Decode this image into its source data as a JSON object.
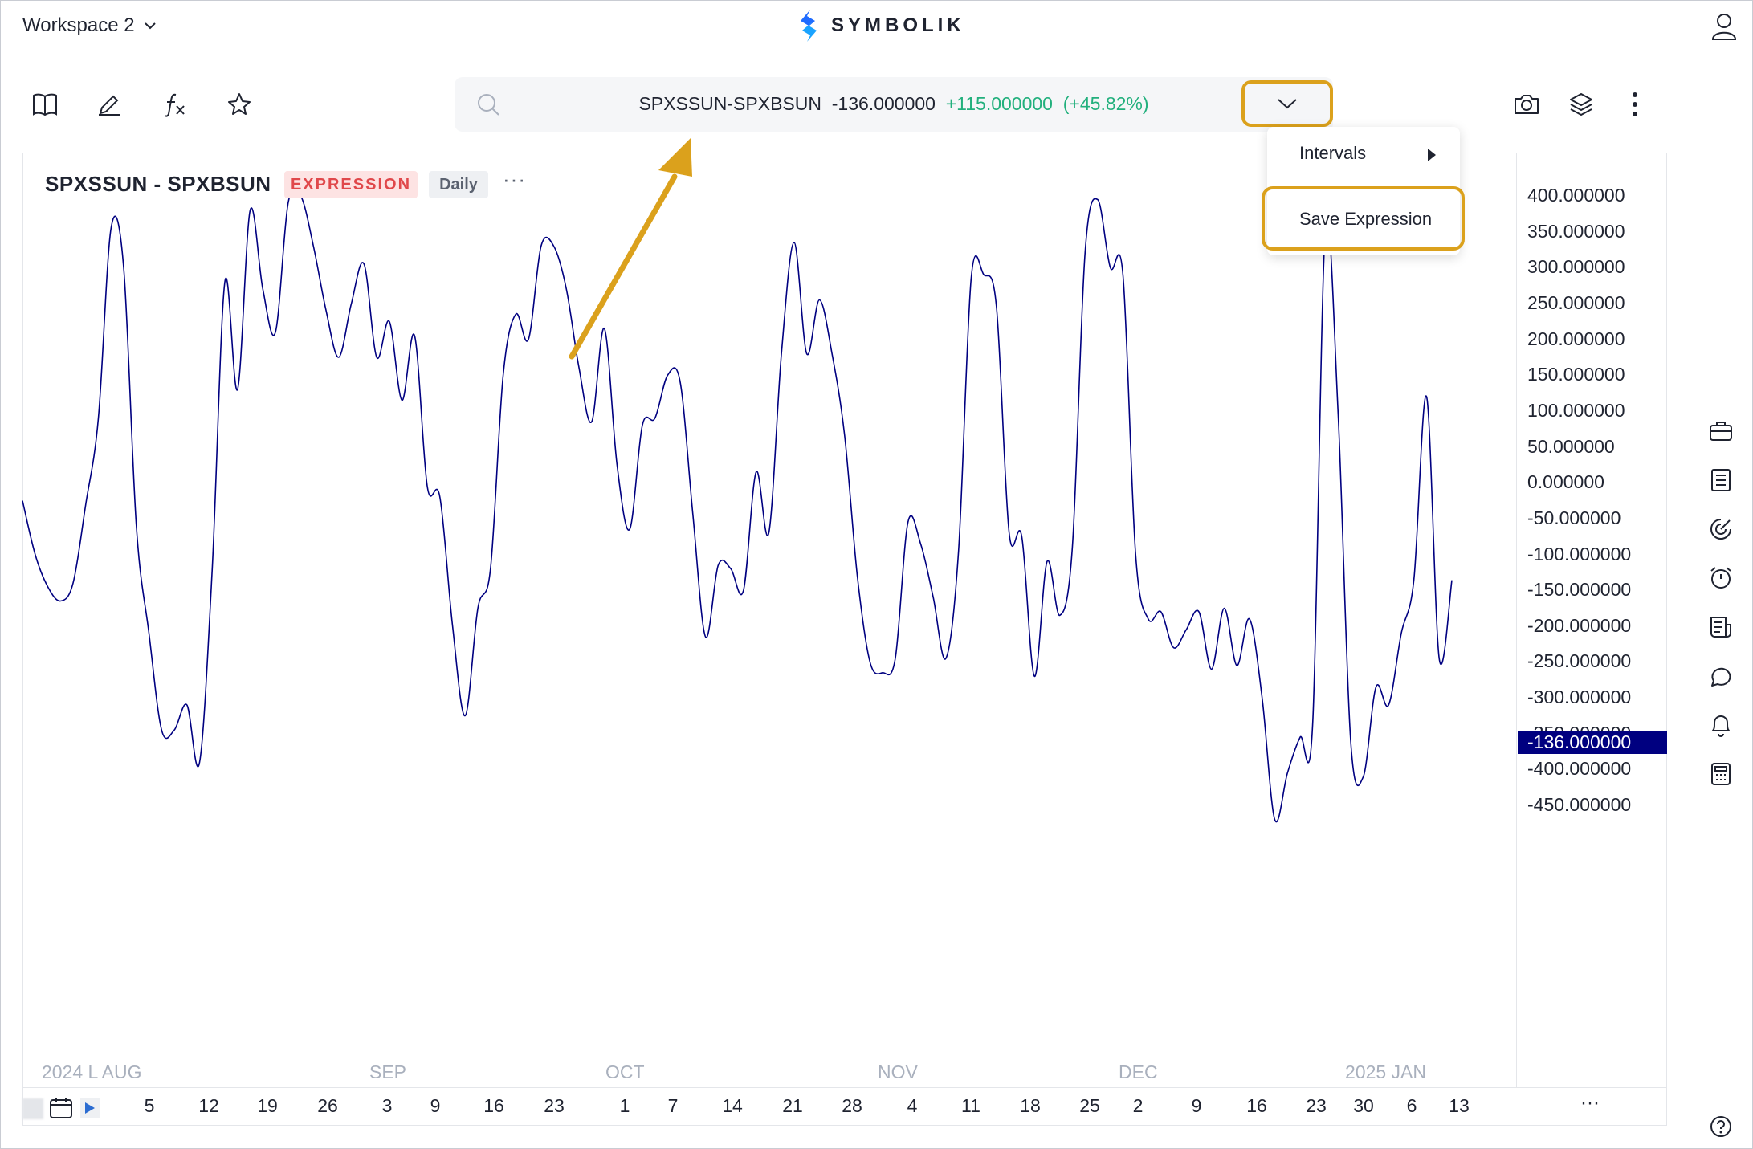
{
  "workspace": {
    "label": "Workspace 2"
  },
  "brand": {
    "name": "SYMBOLIK",
    "color": "#1f6bff"
  },
  "toolbar": {
    "icons": [
      "book-icon",
      "pencil-icon",
      "function-icon",
      "star-icon",
      "camera-icon",
      "layers-icon",
      "more-vertical-icon"
    ]
  },
  "search": {
    "symbol": "SPXSSUN-SPXBSUN",
    "last": "-136.000000",
    "change": "+115.000000",
    "change_pct": "(+45.82%)"
  },
  "dropdown_menu": {
    "items": [
      {
        "label": "Intervals",
        "submenu": true
      },
      {
        "label": "Save Expression",
        "highlighted": true
      }
    ]
  },
  "chart_header": {
    "title": "SPXSSUN - SPXBSUN",
    "badge_expression": "EXPRESSION",
    "badge_interval": "Daily",
    "more": "···"
  },
  "current_price_tag": "-136.000000",
  "x_more": "···",
  "colors": {
    "line": "#000080",
    "highlight": "#dba11c",
    "positive": "#22b07d",
    "expression_badge": "#e0484b"
  },
  "chart_data": {
    "type": "line",
    "title": "SPXSSUN - SPXBSUN",
    "ylim": [
      -470,
      420
    ],
    "y_ticks": [
      "400.000000",
      "350.000000",
      "300.000000",
      "250.000000",
      "200.000000",
      "150.000000",
      "100.000000",
      "50.000000",
      "0.000000",
      "-50.000000",
      "-100.000000",
      "-150.000000",
      "-200.000000",
      "-250.000000",
      "-300.000000",
      "-350.000000",
      "-400.000000",
      "-450.000000"
    ],
    "month_labels": [
      "2024 L AUG",
      "SEP",
      "OCT",
      "NOV",
      "DEC",
      "2025 JAN"
    ],
    "day_labels": [
      "5",
      "12",
      "19",
      "26",
      "3",
      "9",
      "16",
      "23",
      "1",
      "7",
      "14",
      "21",
      "28",
      "4",
      "11",
      "18",
      "25",
      "2",
      "9",
      "16",
      "23",
      "30",
      "6",
      "13"
    ],
    "series": [
      {
        "values": [
          [
            0,
            -25
          ],
          [
            1,
            -100
          ],
          [
            2,
            -145
          ],
          [
            3,
            -165
          ],
          [
            4,
            -140
          ],
          [
            5,
            -30
          ],
          [
            6,
            90
          ],
          [
            7,
            355
          ],
          [
            8,
            300
          ],
          [
            9,
            -60
          ],
          [
            10,
            -210
          ],
          [
            11,
            -345
          ],
          [
            12,
            -345
          ],
          [
            13,
            -310
          ],
          [
            14,
            -390
          ],
          [
            15,
            -120
          ],
          [
            16,
            280
          ],
          [
            17,
            130
          ],
          [
            18,
            380
          ],
          [
            19,
            270
          ],
          [
            20,
            210
          ],
          [
            21,
            390
          ],
          [
            22,
            400
          ],
          [
            23,
            330
          ],
          [
            24,
            240
          ],
          [
            25,
            175
          ],
          [
            26,
            250
          ],
          [
            27,
            305
          ],
          [
            28,
            175
          ],
          [
            29,
            225
          ],
          [
            30,
            115
          ],
          [
            31,
            205
          ],
          [
            32,
            -5
          ],
          [
            33,
            -20
          ],
          [
            34,
            -200
          ],
          [
            35,
            -325
          ],
          [
            36,
            -175
          ],
          [
            37,
            -120
          ],
          [
            38,
            150
          ],
          [
            39,
            235
          ],
          [
            40,
            200
          ],
          [
            41,
            330
          ],
          [
            42,
            330
          ],
          [
            43,
            270
          ],
          [
            44,
            160
          ],
          [
            45,
            85
          ],
          [
            46,
            215
          ],
          [
            47,
            25
          ],
          [
            48,
            -65
          ],
          [
            49,
            80
          ],
          [
            50,
            90
          ],
          [
            51,
            150
          ],
          [
            52,
            140
          ],
          [
            53,
            -45
          ],
          [
            54,
            -215
          ],
          [
            55,
            -115
          ],
          [
            56,
            -120
          ],
          [
            57,
            -150
          ],
          [
            58,
            15
          ],
          [
            59,
            -70
          ],
          [
            60,
            180
          ],
          [
            61,
            335
          ],
          [
            62,
            180
          ],
          [
            63,
            255
          ],
          [
            64,
            180
          ],
          [
            65,
            65
          ],
          [
            66,
            -130
          ],
          [
            67,
            -250
          ],
          [
            68,
            -265
          ],
          [
            69,
            -245
          ],
          [
            70,
            -55
          ],
          [
            71,
            -85
          ],
          [
            72,
            -160
          ],
          [
            73,
            -245
          ],
          [
            74,
            -95
          ],
          [
            75,
            285
          ],
          [
            76,
            290
          ],
          [
            77,
            245
          ],
          [
            78,
            -70
          ],
          [
            79,
            -75
          ],
          [
            80,
            -270
          ],
          [
            81,
            -110
          ],
          [
            82,
            -185
          ],
          [
            83,
            -90
          ],
          [
            84,
            320
          ],
          [
            85,
            395
          ],
          [
            86,
            300
          ],
          [
            87,
            290
          ],
          [
            88,
            -100
          ],
          [
            89,
            -190
          ],
          [
            90,
            -180
          ],
          [
            91,
            -230
          ],
          [
            92,
            -205
          ],
          [
            93,
            -180
          ],
          [
            94,
            -260
          ],
          [
            95,
            -175
          ],
          [
            96,
            -255
          ],
          [
            97,
            -190
          ],
          [
            98,
            -300
          ],
          [
            99,
            -470
          ],
          [
            100,
            -405
          ],
          [
            101,
            -355
          ],
          [
            102,
            -335
          ],
          [
            103,
            355
          ],
          [
            104,
            100
          ],
          [
            105,
            -360
          ],
          [
            106,
            -410
          ],
          [
            107,
            -285
          ],
          [
            108,
            -310
          ],
          [
            109,
            -210
          ],
          [
            110,
            -135
          ],
          [
            111,
            120
          ],
          [
            112,
            -245
          ],
          [
            113,
            -136
          ]
        ]
      }
    ]
  }
}
